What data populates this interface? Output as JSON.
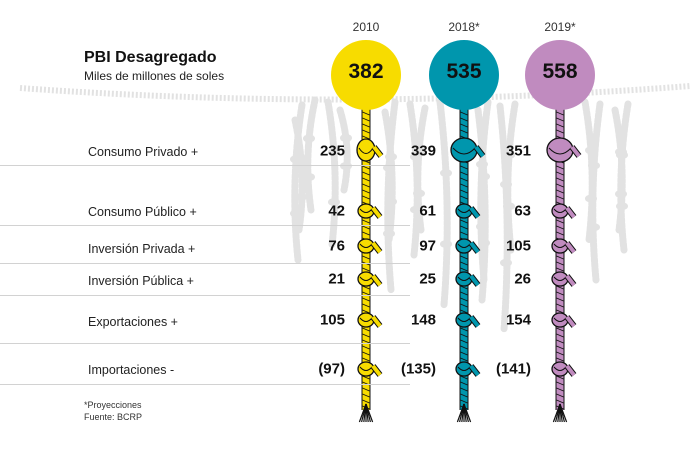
{
  "header": {
    "title": "PBI Desagregado",
    "subtitle": "Miles de millones de soles"
  },
  "footnotes": {
    "projection": "*Proyecciones",
    "source": "Fuente: BCRP"
  },
  "colors": {
    "y2010": "#f7dc00",
    "y2018": "#0096ad",
    "y2019": "#c08bbf",
    "background_rope": "#e2e2e2",
    "separator": "#d2d2d2"
  },
  "chart_data": {
    "type": "table",
    "title": "PBI Desagregado",
    "subtitle": "Miles de millones de soles",
    "columns": [
      "2010",
      "2018*",
      "2019*"
    ],
    "totals": [
      "382",
      "535",
      "558"
    ],
    "rows": [
      {
        "label": "Consumo Privado +",
        "values": [
          "235",
          "339",
          "351"
        ]
      },
      {
        "label": "Consumo Público +",
        "values": [
          "42",
          "61",
          "63"
        ]
      },
      {
        "label": "Inversión Privada +",
        "values": [
          "76",
          "97",
          "105"
        ]
      },
      {
        "label": "Inversión Pública +",
        "values": [
          "21",
          "25",
          "26"
        ]
      },
      {
        "label": "Exportaciones +",
        "values": [
          "105",
          "148",
          "154"
        ]
      },
      {
        "label": "Importaciones -",
        "values": [
          "(97)",
          "(135)",
          "(141)"
        ]
      }
    ]
  }
}
